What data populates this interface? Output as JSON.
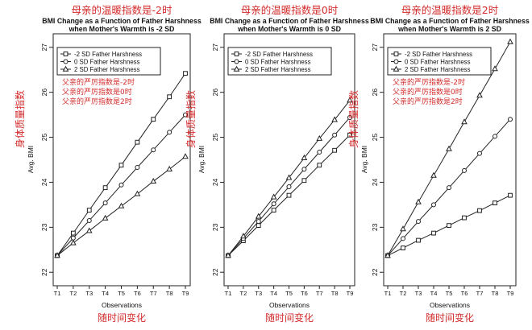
{
  "chart_data": [
    {
      "type": "line",
      "cn_title": "母亲的温暖指数是-2时",
      "title": "BMI Change as a Function of Father Harshness",
      "subtitle": "when Mother's Warmth is -2 SD",
      "ylabel": "Avg. BMI",
      "cn_ylabel": "身体质量指数",
      "xlabel": "Observations",
      "cn_xlabel": "随时间变化",
      "categories": [
        "T1",
        "T2",
        "T3",
        "T4",
        "T5",
        "T6",
        "T7",
        "T8",
        "T9"
      ],
      "ylim": [
        21.7,
        27.3
      ],
      "yticks": [
        22,
        23,
        24,
        25,
        26,
        27
      ],
      "legend_position": "top-left",
      "cn_notes": [
        "父亲的严厉指数是-2时",
        "父亲的严厉指数是0时",
        "父亲的严厉指数是2时"
      ],
      "series": [
        {
          "name": "-2 SD Father Harshness",
          "marker": "square",
          "values": [
            22.37,
            22.87,
            23.38,
            23.88,
            24.38,
            24.89,
            25.4,
            25.9,
            26.42
          ]
        },
        {
          "name": "0 SD Father Harshness",
          "marker": "circle",
          "values": [
            22.37,
            22.76,
            23.15,
            23.54,
            23.94,
            24.33,
            24.72,
            25.11,
            25.5
          ]
        },
        {
          "name": "2 SD Father Harshness",
          "marker": "triangle",
          "values": [
            22.37,
            22.65,
            22.92,
            23.2,
            23.47,
            23.74,
            24.02,
            24.29,
            24.57
          ]
        }
      ]
    },
    {
      "type": "line",
      "cn_title": "母亲的温暖指数是0时",
      "title": "BMI Change as a Function of Father Harshness",
      "subtitle": "when Mother's Warmth is 0 SD",
      "ylabel": "Avg. BMI",
      "cn_ylabel": "身体质量指数",
      "xlabel": "Observations",
      "cn_xlabel": "随时间变化",
      "categories": [
        "T1",
        "T2",
        "T3",
        "T4",
        "T5",
        "T6",
        "T7",
        "T8",
        "T9"
      ],
      "ylim": [
        21.7,
        27.3
      ],
      "yticks": [
        22,
        23,
        24,
        25,
        26,
        27
      ],
      "legend_position": "top-left",
      "cn_notes": [],
      "series": [
        {
          "name": "-2 SD Father Harshness",
          "marker": "square",
          "values": [
            22.37,
            22.7,
            23.04,
            23.38,
            23.71,
            24.04,
            24.38,
            24.71,
            25.05
          ]
        },
        {
          "name": "0 SD Father Harshness",
          "marker": "circle",
          "values": [
            22.37,
            22.75,
            23.13,
            23.52,
            23.9,
            24.29,
            24.67,
            25.05,
            25.44
          ]
        },
        {
          "name": "2 SD Father Harshness",
          "marker": "triangle",
          "values": [
            22.37,
            22.8,
            23.24,
            23.67,
            24.1,
            24.54,
            24.97,
            25.39,
            25.82
          ]
        }
      ]
    },
    {
      "type": "line",
      "cn_title": "母亲的温暖指数是2时",
      "title": "BMI Change as a Function of Father Harshness",
      "subtitle": "when Mother's Warmth is 2 SD",
      "ylabel": "Avg. BMI",
      "cn_ylabel": "身体质量指数",
      "xlabel": "Observations",
      "cn_xlabel": "随时间变化",
      "categories": [
        "T1",
        "T2",
        "T3",
        "T4",
        "T5",
        "T6",
        "T7",
        "T8",
        "T9"
      ],
      "ylim": [
        21.7,
        27.3
      ],
      "yticks": [
        22,
        23,
        24,
        25,
        26,
        27
      ],
      "legend_position": "top-left",
      "cn_notes": [
        "父亲的严厉指数是-2时",
        "父亲的严厉指数是0时",
        "父亲的严厉指数是2时"
      ],
      "series": [
        {
          "name": "-2 SD Father Harshness",
          "marker": "square",
          "values": [
            22.37,
            22.54,
            22.71,
            22.87,
            23.04,
            23.21,
            23.37,
            23.54,
            23.71
          ]
        },
        {
          "name": "0 SD Father Harshness",
          "marker": "circle",
          "values": [
            22.37,
            22.75,
            23.13,
            23.5,
            23.88,
            24.26,
            24.64,
            25.02,
            25.4
          ]
        },
        {
          "name": "2 SD Father Harshness",
          "marker": "triangle",
          "values": [
            22.37,
            22.96,
            23.56,
            24.15,
            24.74,
            25.34,
            25.93,
            26.52,
            27.12
          ]
        }
      ]
    }
  ]
}
